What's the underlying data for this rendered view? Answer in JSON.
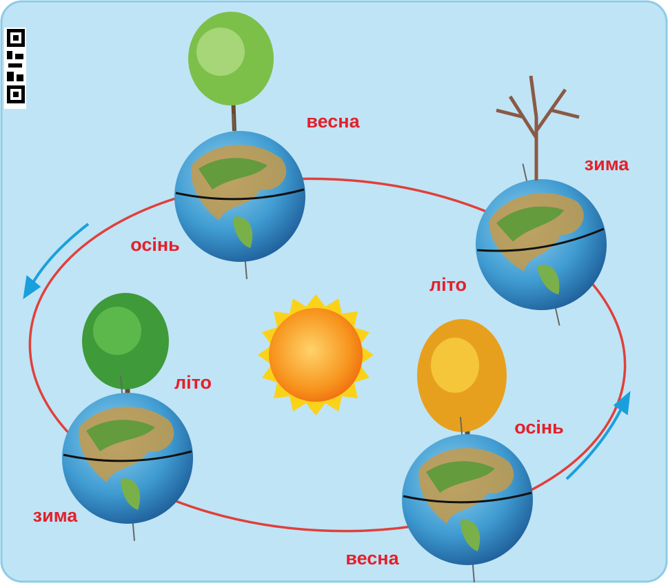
{
  "globes": [
    {
      "tree_label": "весна",
      "side_label": "осінь"
    },
    {
      "tree_label": "зима",
      "side_label": "літо"
    },
    {
      "tree_label": "літо",
      "side_label": "зима"
    },
    {
      "tree_label": "осінь",
      "side_label": "весна"
    }
  ]
}
